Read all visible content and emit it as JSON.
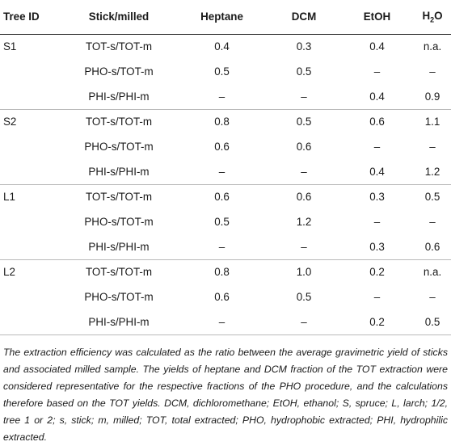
{
  "table": {
    "headers": {
      "tree_id": "Tree ID",
      "stick_milled": "Stick/milled",
      "heptane": "Heptane",
      "dcm": "DCM",
      "etoh": "EtOH",
      "h2o_main": "H",
      "h2o_sub": "2",
      "h2o_tail": "O"
    },
    "rows": [
      {
        "tree": "S1",
        "stick": "TOT-s/TOT-m",
        "heptane": "0.4",
        "dcm": "0.3",
        "etoh": "0.4",
        "h2o": "n.a."
      },
      {
        "tree": "",
        "stick": "PHO-s/TOT-m",
        "heptane": "0.5",
        "dcm": "0.5",
        "etoh": "–",
        "h2o": "–"
      },
      {
        "tree": "",
        "stick": "PHI-s/PHI-m",
        "heptane": "–",
        "dcm": "–",
        "etoh": "0.4",
        "h2o": "0.9"
      },
      {
        "tree": "S2",
        "stick": "TOT-s/TOT-m",
        "heptane": "0.8",
        "dcm": "0.5",
        "etoh": "0.6",
        "h2o": "1.1"
      },
      {
        "tree": "",
        "stick": "PHO-s/TOT-m",
        "heptane": "0.6",
        "dcm": "0.6",
        "etoh": "–",
        "h2o": "–"
      },
      {
        "tree": "",
        "stick": "PHI-s/PHI-m",
        "heptane": "–",
        "dcm": "–",
        "etoh": "0.4",
        "h2o": "1.2"
      },
      {
        "tree": "L1",
        "stick": "TOT-s/TOT-m",
        "heptane": "0.6",
        "dcm": "0.6",
        "etoh": "0.3",
        "h2o": "0.5"
      },
      {
        "tree": "",
        "stick": "PHO-s/TOT-m",
        "heptane": "0.5",
        "dcm": "1.2",
        "etoh": "–",
        "h2o": "–"
      },
      {
        "tree": "",
        "stick": "PHI-s/PHI-m",
        "heptane": "–",
        "dcm": "–",
        "etoh": "0.3",
        "h2o": "0.6"
      },
      {
        "tree": "L2",
        "stick": "TOT-s/TOT-m",
        "heptane": "0.8",
        "dcm": "1.0",
        "etoh": "0.2",
        "h2o": "n.a."
      },
      {
        "tree": "",
        "stick": "PHO-s/TOT-m",
        "heptane": "0.6",
        "dcm": "0.5",
        "etoh": "–",
        "h2o": "–"
      },
      {
        "tree": "",
        "stick": "PHI-s/PHI-m",
        "heptane": "–",
        "dcm": "–",
        "etoh": "0.2",
        "h2o": "0.5"
      }
    ]
  },
  "footnote": "The extraction efficiency was calculated as the ratio between the average gravimetric yield of sticks and associated milled sample. The yields of heptane and DCM fraction of the TOT extraction were considered representative for the respective fractions of the PHO procedure, and the calculations therefore based on the TOT yields. DCM, dichloromethane; EtOH, ethanol; S, spruce; L, larch; 1/2, tree 1 or 2; s, stick; m, milled; TOT, total extracted; PHO, hydrophobic extracted; PHI, hydrophilic extracted."
}
